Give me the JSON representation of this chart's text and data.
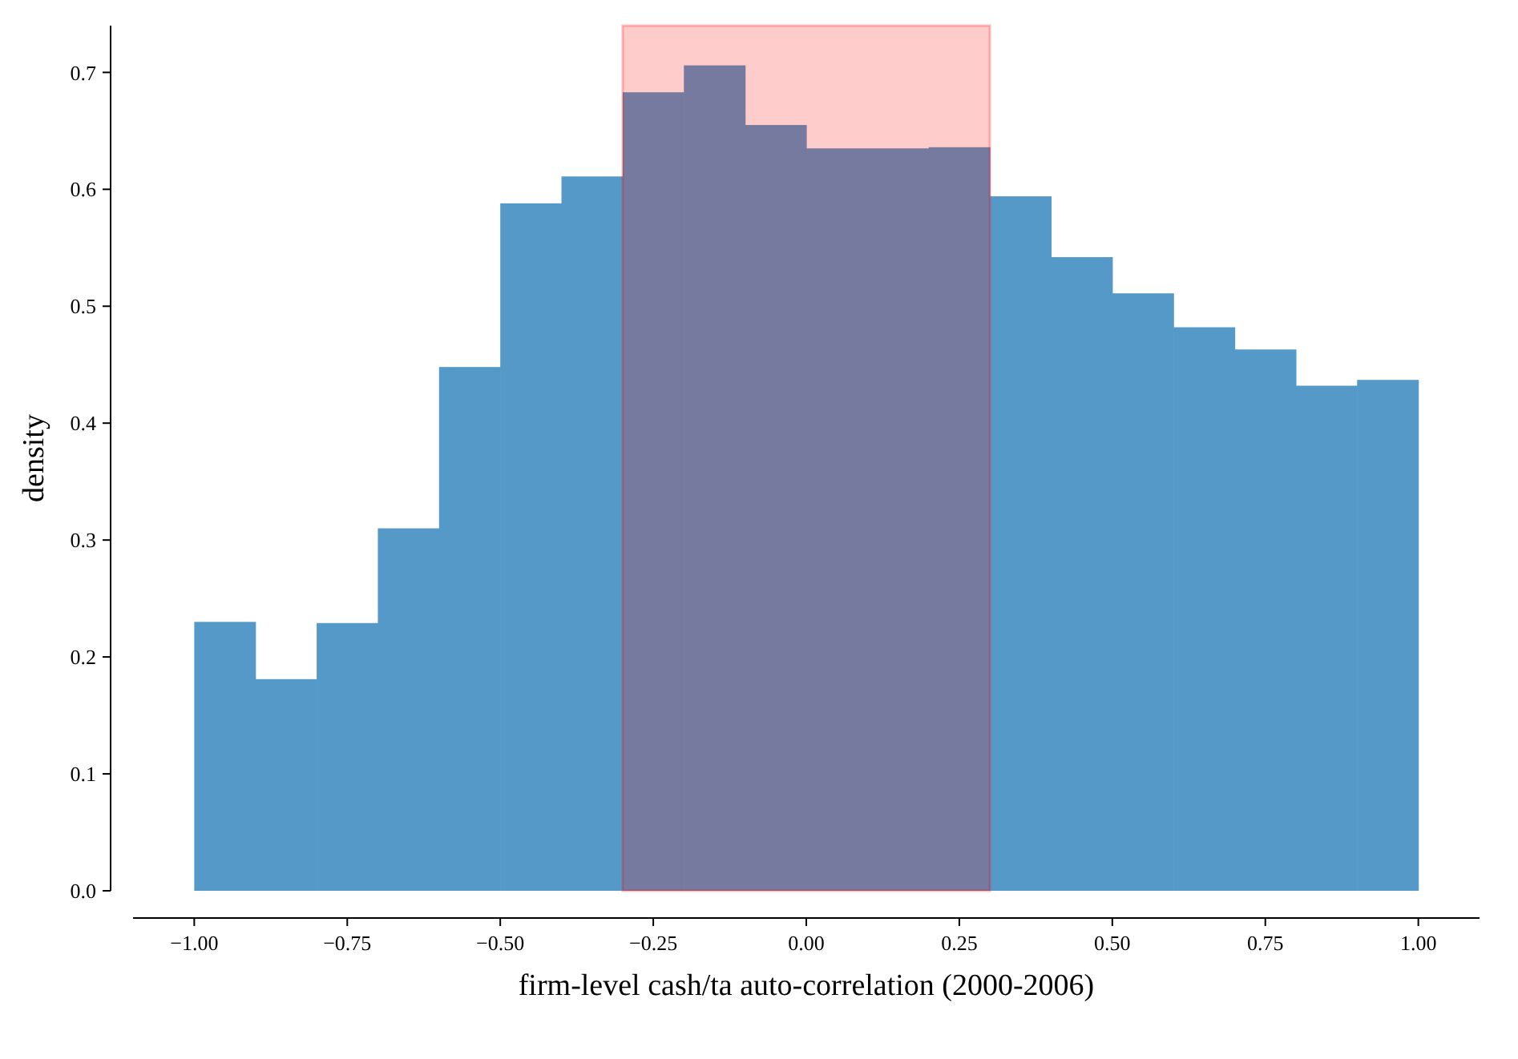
{
  "chart_data": {
    "type": "histogram",
    "xlabel": "firm-level cash/ta auto-correlation (2000-2006)",
    "ylabel": "density",
    "bins": [
      -1.0,
      -0.9,
      -0.8,
      -0.7,
      -0.6,
      -0.5,
      -0.4,
      -0.3,
      -0.2,
      -0.1,
      0.0,
      0.1,
      0.2,
      0.3,
      0.4,
      0.5,
      0.6,
      0.7,
      0.8,
      0.9,
      1.0
    ],
    "values": [
      0.23,
      0.181,
      0.229,
      0.31,
      0.448,
      0.588,
      0.611,
      0.683,
      0.706,
      0.655,
      0.635,
      0.635,
      0.636,
      0.594,
      0.542,
      0.511,
      0.482,
      0.463,
      0.432,
      0.437
    ],
    "color": "#5499c7",
    "xlim": [
      -1.1,
      1.1
    ],
    "xticks": [
      {
        "value": -1,
        "label": "−1.00"
      },
      {
        "value": -0.75,
        "label": "−0.75"
      },
      {
        "value": -0.5,
        "label": "−0.50"
      },
      {
        "value": -0.25,
        "label": "−0.25"
      },
      {
        "value": 0,
        "label": "0.00"
      },
      {
        "value": 0.25,
        "label": "0.25"
      },
      {
        "value": 0.5,
        "label": "0.50"
      },
      {
        "value": 0.75,
        "label": "0.75"
      },
      {
        "value": 1,
        "label": "1.00"
      }
    ],
    "ylim": [
      0,
      0.74
    ],
    "yticks": [
      {
        "value": 0,
        "label": "0.0"
      },
      {
        "value": 0.1,
        "label": "0.1"
      },
      {
        "value": 0.2,
        "label": "0.2"
      },
      {
        "value": 0.3,
        "label": "0.3"
      },
      {
        "value": 0.4,
        "label": "0.4"
      },
      {
        "value": 0.5,
        "label": "0.5"
      },
      {
        "value": 0.6,
        "label": "0.6"
      },
      {
        "value": 0.7,
        "label": "0.7"
      }
    ],
    "bands": [
      {
        "axis": "x",
        "from": -0.3,
        "to": 0.3,
        "color": "#ff0000"
      }
    ],
    "grid": false
  }
}
